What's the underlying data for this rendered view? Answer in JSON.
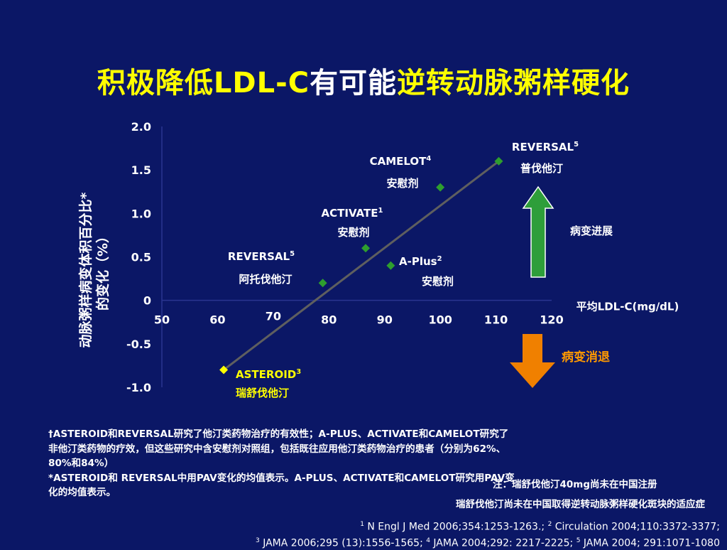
{
  "title": {
    "part1": "积极降低",
    "part2": "LDL-C",
    "part3": "有可能",
    "part4": "逆转动脉粥样硬化"
  },
  "colors": {
    "background": "#0b1766",
    "title_yellow": "#ffff00",
    "point_green": "#2e9e2e",
    "asteroid_yellow": "#ffff00",
    "trend_line": "#5f5f5f",
    "arrow_up": "#2e9e3a",
    "arrow_down": "#f08000",
    "regress_text": "#ff9900"
  },
  "chart_data": {
    "type": "scatter",
    "title": "",
    "xlabel": "平均LDL-C(mg/dL)",
    "ylabel": [
      "动脉粥样病变体积百分比*",
      "的变化（%）"
    ],
    "xlim": [
      50,
      120
    ],
    "ylim": [
      -1.0,
      2.0
    ],
    "x_ticks": [
      "50",
      "60",
      "70",
      "80",
      "90",
      "100",
      "110",
      "120"
    ],
    "y_ticks": [
      "2.0",
      "1.5",
      "1.0",
      "0.5",
      "0",
      "-0.5",
      "-1.0"
    ],
    "grid": false,
    "points": [
      {
        "x": 61.1,
        "y": -0.8,
        "study": "ASTEROID",
        "sup": "3",
        "drug": "瑞舒伐他汀",
        "highlight": true
      },
      {
        "x": 78.9,
        "y": 0.2,
        "study": "REVERSAL",
        "sup": "5",
        "drug": "阿托伐他汀"
      },
      {
        "x": 86.6,
        "y": 0.6,
        "study": "ACTIVATE",
        "sup": "1",
        "drug": "安慰剂"
      },
      {
        "x": 91.1,
        "y": 0.4,
        "study": "A-Plus",
        "sup": "2",
        "drug": "安慰剂"
      },
      {
        "x": 100.0,
        "y": 1.3,
        "study": "CAMELOT",
        "sup": "4",
        "drug": "安慰剂"
      },
      {
        "x": 110.5,
        "y": 1.6,
        "study": "REVERSAL",
        "sup": "5",
        "drug": "普伐他汀"
      }
    ],
    "trend_line": {
      "x": [
        61.1,
        110.5
      ],
      "y": [
        -0.8,
        1.6
      ]
    },
    "arrows": {
      "up_label": "病变进展",
      "down_label": "病变消退"
    }
  },
  "notes": {
    "china_note": "注：瑞舒伐他汀40mg尚未在中国注册",
    "indication_note": "瑞舒伐他汀尚未在中国取得逆转动脉粥样硬化斑块的适应症"
  },
  "footnotes": [
    "†ASTEROID和REVERSAL研究了他汀类药物治疗的有效性；A-PLUS、ACTIVATE和CAMELOT研究了非他汀类药物的疗效，但这些研究中含安慰剂对照组，包括既往应用他汀类药物治疗的患者（分别为62%、80%和84%）",
    "*ASTEROID和 REVERSAL中用PAV变化的均值表示。A-PLUS、ACTIVATE和CAMELOT研究用PAV变化的均值表示。"
  ],
  "references": {
    "line1": [
      {
        "sup": "1",
        "text": " N Engl J Med 2006;354:1253-1263.; "
      },
      {
        "sup": "2",
        "text": " Circulation 2004;110:3372-3377;"
      }
    ],
    "line2": [
      {
        "sup": "3",
        "text": " JAMA 2006;295 (13):1556-1565; "
      },
      {
        "sup": "4",
        "text": " JAMA 2004;292: 2217-2225; "
      },
      {
        "sup": "5",
        "text": " JAMA 2004; 291:1071-1080"
      }
    ]
  }
}
